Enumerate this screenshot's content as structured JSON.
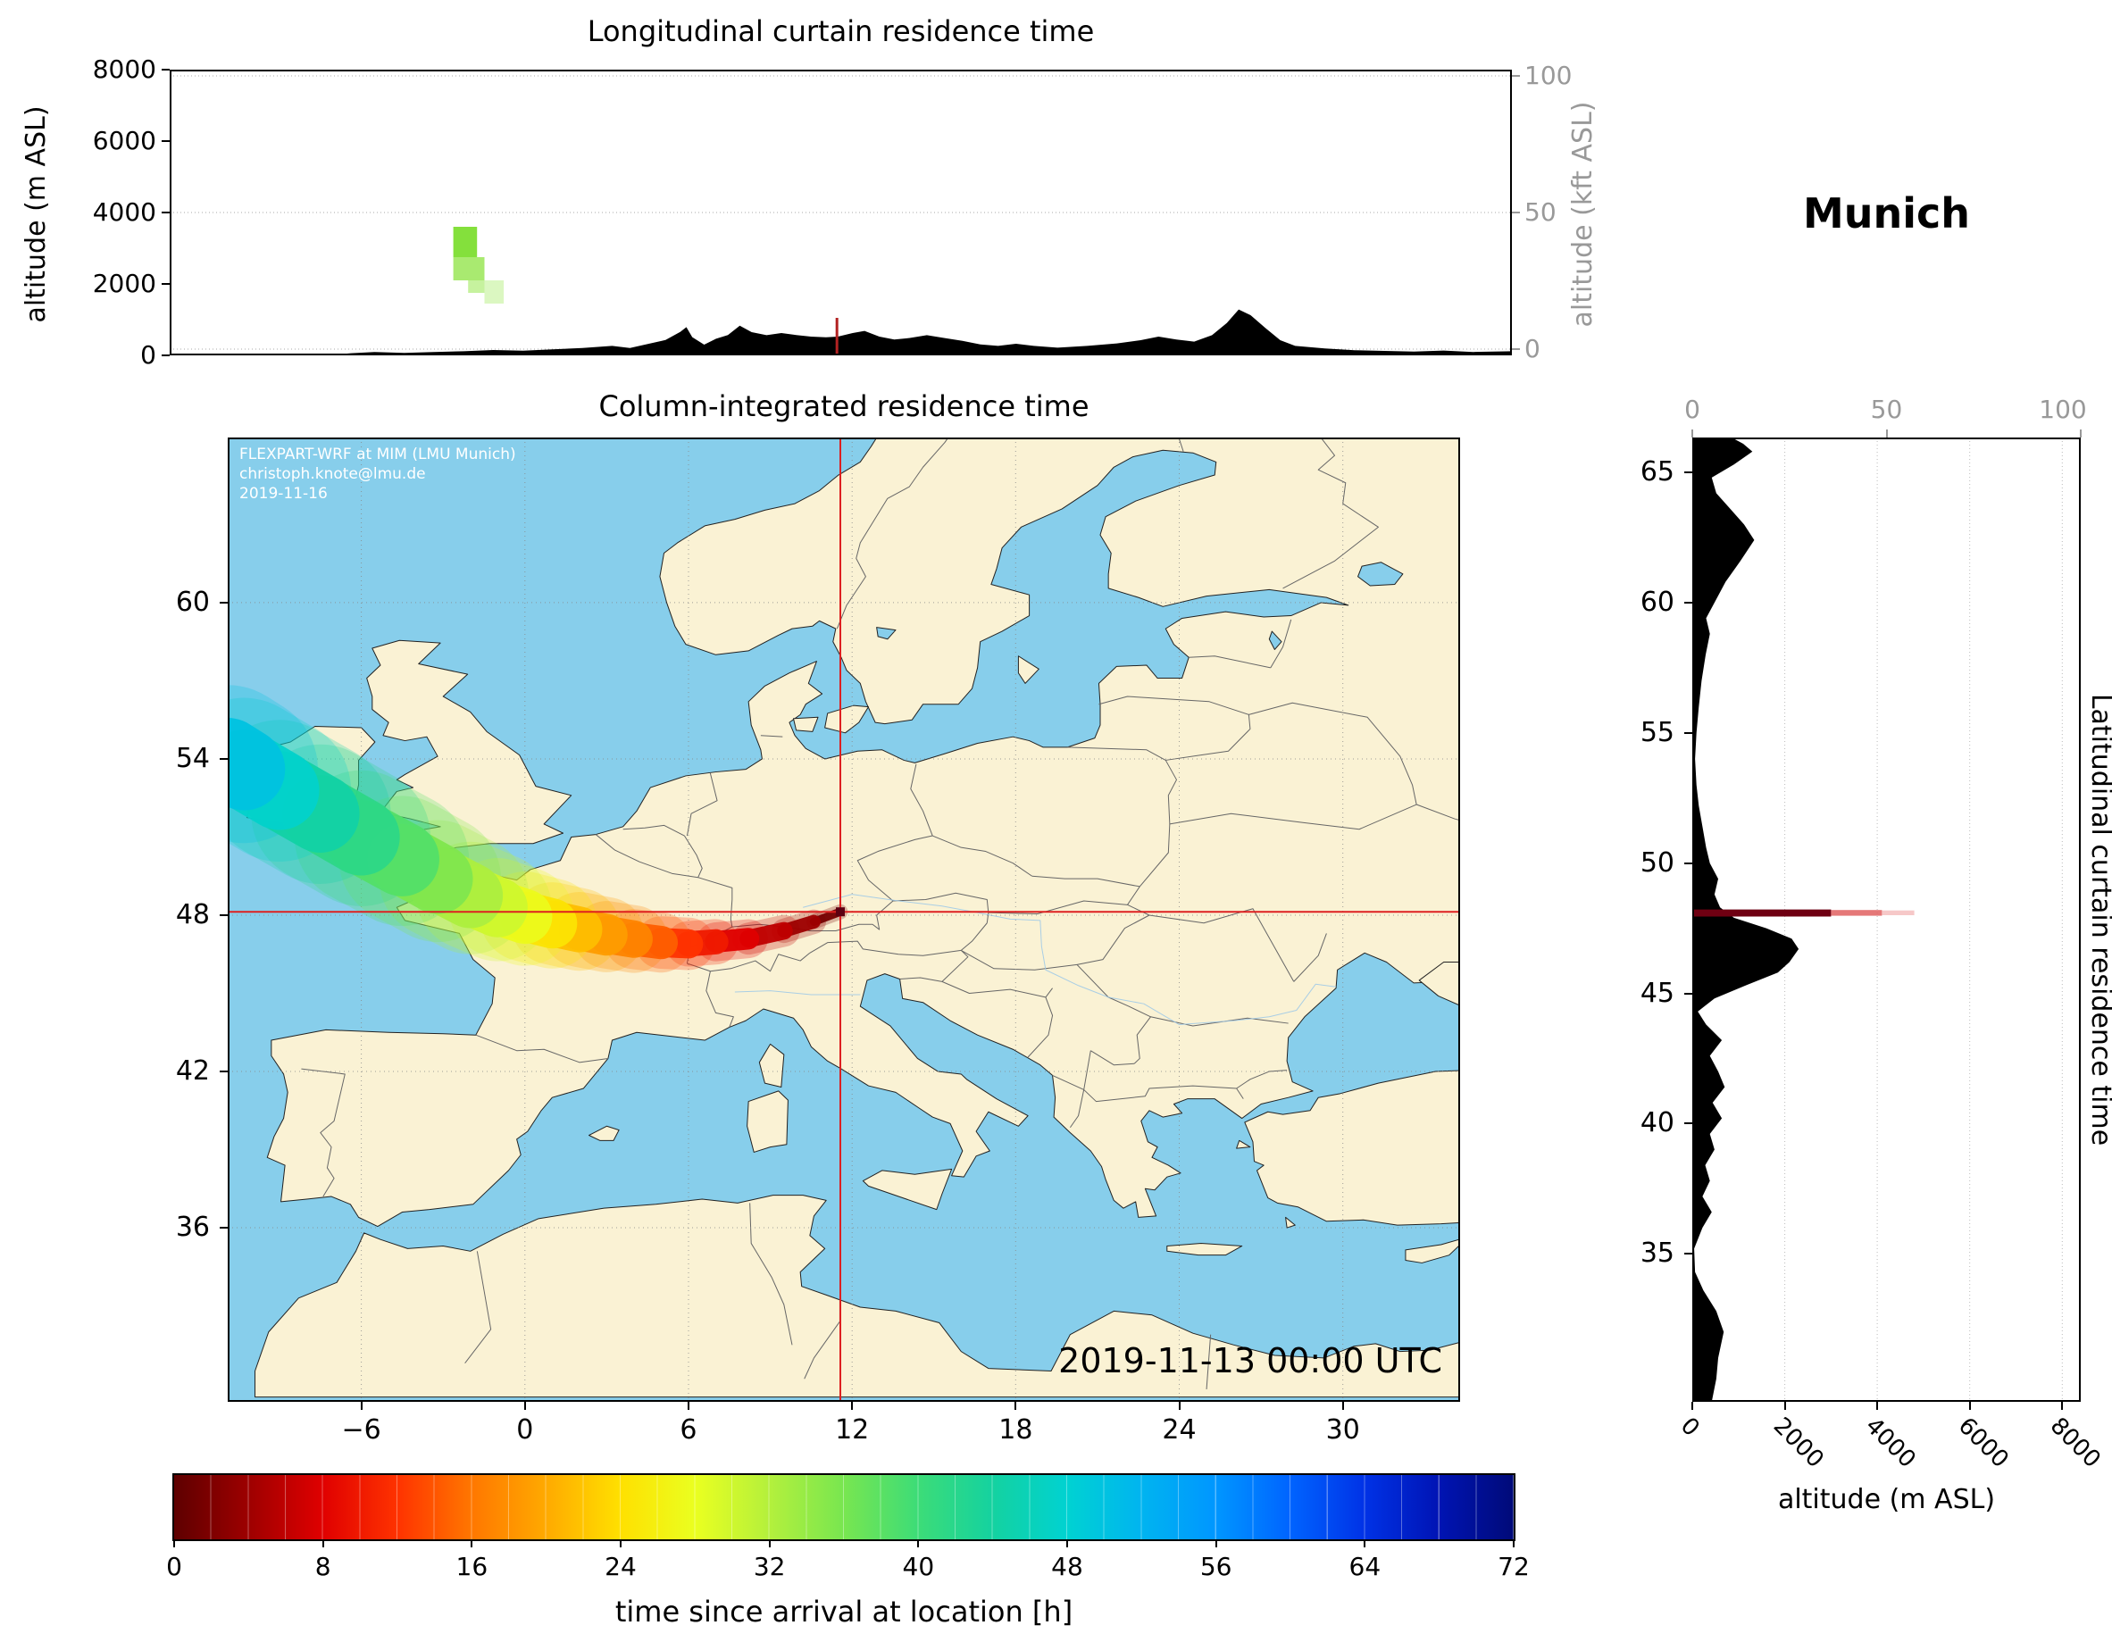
{
  "location_title": "Munich",
  "map": {
    "title": "Column-integrated residence time",
    "watermark_lines": [
      "FLEXPART-WRF at MIM (LMU Munich)",
      "christoph.knote@lmu.de",
      "2019-11-16"
    ],
    "timestamp": "2019-11-13 00:00 UTC",
    "lon_ticks": [
      -6,
      0,
      6,
      12,
      18,
      24,
      30
    ],
    "lat_ticks": [
      36,
      42,
      48,
      54,
      60
    ]
  },
  "top_panel": {
    "title": "Longitudinal curtain residence time",
    "ylabel": "altitude (m ASL)",
    "ylabel_right": "altitude (kft ASL)",
    "yticks": [
      0,
      2000,
      4000,
      6000,
      8000
    ],
    "yticks_right": [
      0,
      50,
      100
    ]
  },
  "right_panel": {
    "ylabel_right": "Latitudinal curtain residence time",
    "xlabel": "altitude (m ASL)",
    "xticks": [
      0,
      2000,
      4000,
      6000,
      8000
    ],
    "xticks_top": [
      0,
      50,
      100
    ],
    "lat_ticks": [
      35,
      40,
      45,
      50,
      55,
      60,
      65
    ]
  },
  "colorbar": {
    "label": "time since arrival at location [h]",
    "ticks": [
      0,
      8,
      16,
      24,
      32,
      40,
      48,
      56,
      64,
      72
    ]
  },
  "colors": {
    "water": "#87CEEB",
    "land": "#FAF2D4",
    "coast": "#222222",
    "border": "#666666",
    "river": "#9cc8e8",
    "crosshair": "#dd2020",
    "marker": "#5c0011",
    "terrain": "#000000",
    "grid": "#888888"
  },
  "chart_data": {
    "type": "map-trajectory",
    "title": "FLEXPART-WRF backward residence time for Munich, 2019-11-13 00:00 UTC",
    "source": {
      "name": "Munich",
      "lon": 11.57,
      "lat": 48.13
    },
    "axes": {
      "lon_range": [
        -10.9,
        34.3
      ],
      "lat_range": [
        29.32,
        66.34
      ],
      "alt_range_m": [
        0,
        8000
      ],
      "alt_axis_max_m": 8400,
      "kft_axis": [
        0,
        100
      ],
      "time_range_h": [
        0,
        72
      ]
    },
    "colormap_stops": [
      [
        0,
        "#5e0000"
      ],
      [
        4,
        "#9e0000"
      ],
      [
        8,
        "#e00000"
      ],
      [
        12,
        "#ff3300"
      ],
      [
        16,
        "#ff7700"
      ],
      [
        20,
        "#ffaa00"
      ],
      [
        24,
        "#ffe000"
      ],
      [
        28,
        "#eaff20"
      ],
      [
        32,
        "#b4f03c"
      ],
      [
        36,
        "#78e650"
      ],
      [
        40,
        "#3cdc78"
      ],
      [
        44,
        "#14d2a0"
      ],
      [
        48,
        "#00d2d2"
      ],
      [
        52,
        "#00b4f0"
      ],
      [
        56,
        "#0096ff"
      ],
      [
        60,
        "#0064ff"
      ],
      [
        64,
        "#0032e6"
      ],
      [
        68,
        "#0014b4"
      ],
      [
        72,
        "#000a78"
      ]
    ],
    "trajectory": [
      [
        11.57,
        48.13,
        0,
        0.1
      ],
      [
        10.6,
        47.75,
        3,
        0.22
      ],
      [
        9.5,
        47.4,
        5,
        0.3
      ],
      [
        8.2,
        47.1,
        7,
        0.38
      ],
      [
        7.0,
        46.98,
        9,
        0.45
      ],
      [
        6.0,
        46.9,
        11,
        0.52
      ],
      [
        5.0,
        46.95,
        13,
        0.6
      ],
      [
        4.0,
        47.08,
        16,
        0.68
      ],
      [
        3.0,
        47.25,
        18,
        0.76
      ],
      [
        2.0,
        47.45,
        20,
        0.84
      ],
      [
        1.0,
        47.68,
        23,
        0.92
      ],
      [
        0.0,
        47.95,
        26,
        1.0
      ],
      [
        -1.0,
        48.3,
        29,
        1.1
      ],
      [
        -2.0,
        48.75,
        31,
        1.2
      ],
      [
        -3.2,
        49.4,
        34,
        1.3
      ],
      [
        -4.5,
        50.15,
        37,
        1.4
      ],
      [
        -6.0,
        51.0,
        40,
        1.45
      ],
      [
        -7.5,
        51.9,
        43,
        1.5
      ],
      [
        -9.0,
        52.8,
        46,
        1.5
      ],
      [
        -10.3,
        53.6,
        49,
        1.55
      ],
      [
        -10.9,
        54.0,
        51,
        1.6
      ]
    ],
    "longitudinal_curtain": {
      "cells": [
        {
          "x0": -1.35,
          "x1": -0.55,
          "y0": 2750,
          "y1": 3600,
          "c": "#84e03c",
          "o": 1
        },
        {
          "x0": -1.35,
          "x1": -0.3,
          "y0": 2100,
          "y1": 2750,
          "c": "#a0e860",
          "o": 0.9
        },
        {
          "x0": -0.85,
          "x1": -0.3,
          "y0": 1750,
          "y1": 2100,
          "c": "#b8ef86",
          "o": 0.8
        },
        {
          "x0": -0.3,
          "x1": 0.35,
          "y0": 1450,
          "y1": 2100,
          "c": "#ccf4a6",
          "o": 0.7
        }
      ],
      "terrain": [
        [
          -10.9,
          0
        ],
        [
          -5.6,
          0
        ],
        [
          -4.8,
          60
        ],
        [
          -4,
          95
        ],
        [
          -3,
          70
        ],
        [
          -2,
          95
        ],
        [
          -1,
          115
        ],
        [
          0,
          150
        ],
        [
          1,
          130
        ],
        [
          2,
          170
        ],
        [
          3,
          205
        ],
        [
          4,
          265
        ],
        [
          4.6,
          205
        ],
        [
          5.2,
          320
        ],
        [
          5.8,
          430
        ],
        [
          6.3,
          660
        ],
        [
          6.5,
          790
        ],
        [
          6.7,
          510
        ],
        [
          7.1,
          300
        ],
        [
          7.5,
          465
        ],
        [
          7.9,
          570
        ],
        [
          8.3,
          830
        ],
        [
          8.7,
          650
        ],
        [
          9.2,
          565
        ],
        [
          9.7,
          625
        ],
        [
          10.2,
          570
        ],
        [
          10.7,
          525
        ],
        [
          11.2,
          505
        ],
        [
          11.6,
          525
        ],
        [
          12.1,
          625
        ],
        [
          12.5,
          685
        ],
        [
          13,
          525
        ],
        [
          13.5,
          445
        ],
        [
          14,
          485
        ],
        [
          14.6,
          565
        ],
        [
          15.2,
          485
        ],
        [
          15.8,
          405
        ],
        [
          16.4,
          305
        ],
        [
          17,
          265
        ],
        [
          17.6,
          325
        ],
        [
          18.2,
          265
        ],
        [
          19,
          215
        ],
        [
          20,
          265
        ],
        [
          21,
          335
        ],
        [
          21.8,
          425
        ],
        [
          22.4,
          525
        ],
        [
          23,
          445
        ],
        [
          23.6,
          385
        ],
        [
          24.2,
          565
        ],
        [
          24.7,
          905
        ],
        [
          25.1,
          1285
        ],
        [
          25.5,
          1125
        ],
        [
          26,
          765
        ],
        [
          26.5,
          425
        ],
        [
          27,
          265
        ],
        [
          28,
          195
        ],
        [
          29,
          145
        ],
        [
          30,
          125
        ],
        [
          31,
          105
        ],
        [
          32,
          135
        ],
        [
          33,
          95
        ],
        [
          34.3,
          115
        ]
      ]
    },
    "latitudinal_curtain": {
      "cells": [
        {
          "lat0": 47.95,
          "lat1": 48.22,
          "x0": 0,
          "x1": 3000,
          "c": "#6f0012",
          "o": 1
        },
        {
          "lat0": 47.98,
          "lat1": 48.2,
          "x0": 3000,
          "x1": 4100,
          "c": "#e06060",
          "o": 0.85
        },
        {
          "lat0": 48.0,
          "lat1": 48.18,
          "x0": 4100,
          "x1": 4800,
          "c": "#f2b0b0",
          "o": 0.7
        }
      ],
      "terrain": [
        [
          29.32,
          420
        ],
        [
          30.2,
          520
        ],
        [
          31,
          560
        ],
        [
          32,
          680
        ],
        [
          32.8,
          520
        ],
        [
          33.6,
          240
        ],
        [
          34.3,
          60
        ],
        [
          35.2,
          40
        ],
        [
          36,
          220
        ],
        [
          36.6,
          420
        ],
        [
          37.2,
          220
        ],
        [
          37.8,
          380
        ],
        [
          38.4,
          280
        ],
        [
          39,
          480
        ],
        [
          39.6,
          380
        ],
        [
          40.2,
          640
        ],
        [
          40.8,
          440
        ],
        [
          41.4,
          700
        ],
        [
          42,
          560
        ],
        [
          42.6,
          380
        ],
        [
          43.2,
          640
        ],
        [
          43.8,
          300
        ],
        [
          44.3,
          120
        ],
        [
          44.8,
          480
        ],
        [
          45.3,
          1150
        ],
        [
          45.8,
          1850
        ],
        [
          46.2,
          2100
        ],
        [
          46.7,
          2300
        ],
        [
          47.1,
          2150
        ],
        [
          47.5,
          1600
        ],
        [
          47.9,
          900
        ],
        [
          48.3,
          600
        ],
        [
          48.8,
          480
        ],
        [
          49.4,
          560
        ],
        [
          50,
          380
        ],
        [
          50.6,
          300
        ],
        [
          51.4,
          220
        ],
        [
          52.2,
          140
        ],
        [
          53,
          90
        ],
        [
          54,
          60
        ],
        [
          55,
          90
        ],
        [
          56,
          140
        ],
        [
          57,
          200
        ],
        [
          58,
          290
        ],
        [
          58.8,
          380
        ],
        [
          59.4,
          300
        ],
        [
          60,
          480
        ],
        [
          60.8,
          720
        ],
        [
          61.6,
          1040
        ],
        [
          62.4,
          1340
        ],
        [
          63,
          1120
        ],
        [
          63.6,
          820
        ],
        [
          64.2,
          520
        ],
        [
          64.8,
          420
        ],
        [
          65.3,
          900
        ],
        [
          65.8,
          1300
        ],
        [
          66.1,
          1100
        ],
        [
          66.34,
          850
        ]
      ]
    }
  }
}
